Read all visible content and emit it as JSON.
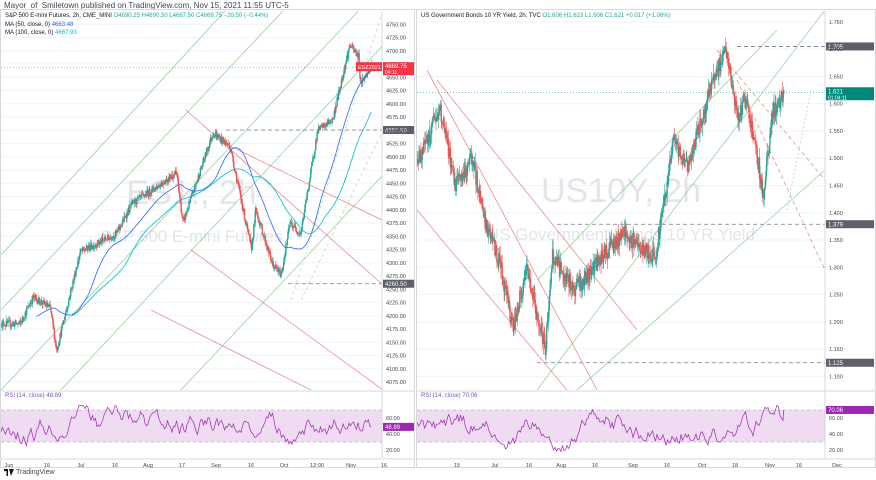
{
  "publisher_line": "Mayor_of_Smiletown published on TradingView.com, Nov 15, 2021 11:55 UTC-5",
  "footer_brand": "TradingView",
  "colors": {
    "up": "#26a69a",
    "down": "#ef5350",
    "green_line": "#66bb6a",
    "red_line": "#ef5350",
    "ma_blue": "#2962ff",
    "ma_cyan": "#00bcd4",
    "rsi": "#9c27b0",
    "rsi_band": "#e1bee7",
    "grid": "#f0f3fa",
    "watermark": "#e3e5ea",
    "hline": "#787b86"
  },
  "left_chart": {
    "header": {
      "title": "S&P 500 E-mini Futures, 2h, CME_MINI",
      "ohlc": "O4690.25 H4690.50 L4667.50 C4669.75 −20.50 (−0.44%)",
      "ma50": "MA (50, close, 0)",
      "ma50_val": "4663.48",
      "ma100": "MA (100, close, 0)",
      "ma100_val": "4667.93"
    },
    "watermark_symbol": "ES1!, 2h",
    "watermark_name": "S&P 500 E-mini Futures",
    "price_badge": {
      "symbol": "ESZ2021",
      "price": "4669.75",
      "timer": "04:11"
    },
    "level_labels": [
      "4550.50",
      "4260.50"
    ],
    "rsi_header": "RSI (14, close)",
    "rsi_value": "48.89",
    "rsi_ticks": [
      "60.00",
      "40.00",
      "20.00"
    ],
    "x_ticks": [
      "Jun",
      "16",
      "Jul",
      "16",
      "Aug",
      "17",
      "Sep",
      "16",
      "Oct",
      "12:00",
      "Nov",
      "16"
    ],
    "chart_data": {
      "type": "candlestick",
      "y_ticks": [
        4075,
        4100,
        4125,
        4150,
        4175,
        4200,
        4225,
        4250,
        4275,
        4300,
        4325,
        4350,
        4375,
        4400,
        4425,
        4450,
        4475,
        4500,
        4525,
        4550,
        4575,
        4600,
        4625,
        4650,
        4675,
        4700,
        4725,
        4750
      ],
      "y_tick_labels": [
        "4075.00",
        "4100.00",
        "4125.00",
        "4150.00",
        "4175.00",
        "4200.00",
        "4225.00",
        "4250.00",
        "4275.00",
        "4300.00",
        "4325.00",
        "4350.00",
        "4375.00",
        "4400.00",
        "4425.00",
        "4450.00",
        "4475.00",
        "4500.00",
        "4525.00",
        "4550.00",
        "4575.00",
        "4600.00",
        "4625.00",
        "4650.00",
        "4675.00",
        "4700.00",
        "4725.00",
        "4750.00"
      ],
      "ylim": [
        4060,
        4775
      ],
      "time_range": [
        "2021-05-26",
        "2021-11-20"
      ],
      "path_dates": [
        "2021-05-26",
        "2021-06-04",
        "2021-06-10",
        "2021-06-18",
        "2021-06-21",
        "2021-07-02",
        "2021-07-19",
        "2021-07-26",
        "2021-08-16",
        "2021-08-19",
        "2021-09-02",
        "2021-09-10",
        "2021-09-20",
        "2021-09-22",
        "2021-09-30",
        "2021-10-04",
        "2021-10-08",
        "2021-10-13",
        "2021-10-21",
        "2021-10-28",
        "2021-11-02",
        "2021-11-05",
        "2021-11-09",
        "2021-11-10",
        "2021-11-15"
      ],
      "path_prices": [
        4185,
        4185,
        4235,
        4215,
        4135,
        4320,
        4355,
        4410,
        4470,
        4375,
        4545,
        4520,
        4325,
        4400,
        4295,
        4278,
        4375,
        4355,
        4550,
        4570,
        4660,
        4710,
        4690,
        4640,
        4669
      ],
      "levels": [
        4550.5,
        4260.5
      ],
      "rsi": {
        "ylim": [
          10,
          90
        ],
        "bands": [
          30,
          70
        ],
        "last": 48.89
      }
    }
  },
  "right_chart": {
    "header": {
      "title": "US Government Bonds 10 YR Yield, 2h, TVC",
      "ohlc": "O1.606 H1.623 L1.606 C1.621 +0.017 (+1.06%)"
    },
    "watermark_symbol": "US10Y, 2h",
    "watermark_name": "US Government Bonds 10 YR Yield",
    "price_badge": {
      "symbol": "US10Y",
      "price": "1.621",
      "timer": "01:04:11"
    },
    "level_labels": [
      "1.705",
      "1.379",
      "1.125"
    ],
    "rsi_header": "RSI (14, close)",
    "rsi_value": "70.06",
    "rsi_ticks": [
      "60.00",
      "40.00",
      "20.00"
    ],
    "x_ticks": [
      "15",
      "Jul",
      "16",
      "Aug",
      "16",
      "Sep",
      "16",
      "Oct",
      "18",
      "Nov",
      "16",
      "Dec"
    ],
    "chart_data": {
      "type": "candlestick",
      "y_ticks": [
        1.1,
        1.15,
        1.2,
        1.25,
        1.3,
        1.35,
        1.4,
        1.45,
        1.5,
        1.55,
        1.6,
        1.65,
        1.7,
        1.75
      ],
      "y_tick_labels": [
        "1.100",
        "1.150",
        "1.200",
        "1.250",
        "1.300",
        "1.350",
        "1.400",
        "1.450",
        "1.500",
        "1.550",
        "1.600",
        "1.650",
        "1.700",
        "1.750"
      ],
      "ylim": [
        1.075,
        1.77
      ],
      "time_range": [
        "2021-06-08",
        "2021-12-03"
      ],
      "path_dates": [
        "2021-06-08",
        "2021-06-18",
        "2021-06-25",
        "2021-07-02",
        "2021-07-08",
        "2021-07-14",
        "2021-07-20",
        "2021-07-26",
        "2021-08-03",
        "2021-08-06",
        "2021-08-16",
        "2021-08-24",
        "2021-08-30",
        "2021-09-06",
        "2021-09-20",
        "2021-09-28",
        "2021-10-04",
        "2021-10-15",
        "2021-10-21",
        "2021-10-26",
        "2021-10-29",
        "2021-11-03",
        "2021-11-06",
        "2021-11-10",
        "2021-11-15"
      ],
      "path_prices": [
        1.49,
        1.59,
        1.45,
        1.5,
        1.38,
        1.31,
        1.19,
        1.3,
        1.15,
        1.32,
        1.26,
        1.3,
        1.33,
        1.36,
        1.32,
        1.53,
        1.48,
        1.64,
        1.7,
        1.57,
        1.61,
        1.52,
        1.43,
        1.58,
        1.621
      ],
      "levels": [
        1.705,
        1.379,
        1.125
      ],
      "rsi": {
        "ylim": [
          10,
          90
        ],
        "bands": [
          30,
          70
        ],
        "last": 70.06
      }
    }
  }
}
